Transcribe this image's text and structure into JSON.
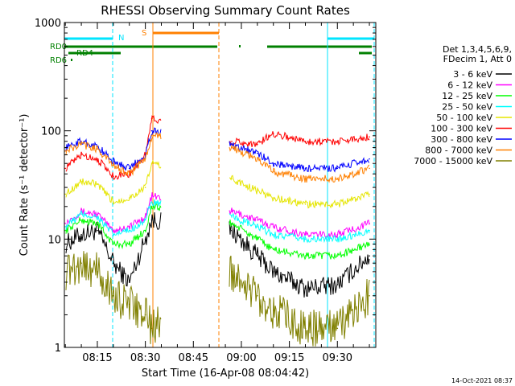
{
  "chart_data": {
    "type": "line",
    "title": "RHESSI Observing Summary Count Rates",
    "xlabel": "Start Time (16-Apr-08 08:04:42)",
    "ylabel": "Count Rate (s⁻¹ detector⁻¹)",
    "y_scale": "log",
    "ylim": [
      1,
      1000
    ],
    "xlim": [
      "08:04:42",
      "09:42:00"
    ],
    "x_ticks": [
      "08:15",
      "08:30",
      "08:45",
      "09:00",
      "09:15",
      "09:30"
    ],
    "y_ticks": [
      "1",
      "10",
      "100",
      "1000"
    ],
    "legend": {
      "placement": "right",
      "header": [
        "Det 1,3,4,5,6,9,",
        "FDecim 1, Att 0"
      ]
    },
    "series": [
      {
        "name": "3 - 6 keV",
        "color": "#000000",
        "x": [
          "08:05",
          "08:10",
          "08:15",
          "08:20",
          "08:25",
          "08:30",
          "08:32",
          "08:57",
          "09:05",
          "09:10",
          "09:20",
          "09:30",
          "09:40"
        ],
        "y": [
          9,
          11,
          12,
          6,
          4,
          10,
          15,
          12,
          7,
          5,
          3.5,
          3.8,
          7
        ]
      },
      {
        "name": "6 - 12 keV",
        "color": "#ff00ff",
        "x": [
          "08:05",
          "08:10",
          "08:15",
          "08:20",
          "08:25",
          "08:30",
          "08:32",
          "08:57",
          "09:05",
          "09:10",
          "09:20",
          "09:30",
          "09:40"
        ],
        "y": [
          14,
          18,
          17,
          12,
          13,
          16,
          25,
          18,
          15,
          13,
          11,
          11,
          14
        ]
      },
      {
        "name": "12 - 25 keV",
        "color": "#00ff00",
        "x": [
          "08:05",
          "08:10",
          "08:15",
          "08:20",
          "08:25",
          "08:30",
          "08:32",
          "08:57",
          "09:05",
          "09:10",
          "09:20",
          "09:30",
          "09:40"
        ],
        "y": [
          12,
          15,
          14,
          9,
          9,
          12,
          20,
          14,
          10,
          8,
          7,
          7,
          9
        ]
      },
      {
        "name": "25 - 50 keV",
        "color": "#00ffff",
        "x": [
          "08:05",
          "08:10",
          "08:15",
          "08:20",
          "08:25",
          "08:30",
          "08:32",
          "08:57",
          "09:05",
          "09:10",
          "09:20",
          "09:30",
          "09:40"
        ],
        "y": [
          13,
          17,
          16,
          11,
          12,
          15,
          22,
          16,
          13,
          11,
          10,
          10,
          12
        ]
      },
      {
        "name": "50 - 100 keV",
        "color": "#e5e500",
        "x": [
          "08:05",
          "08:10",
          "08:15",
          "08:20",
          "08:25",
          "08:30",
          "08:32",
          "08:57",
          "09:05",
          "09:10",
          "09:20",
          "09:30",
          "09:40"
        ],
        "y": [
          26,
          34,
          32,
          22,
          24,
          30,
          50,
          36,
          28,
          24,
          21,
          21,
          26
        ]
      },
      {
        "name": "100 - 300 keV",
        "color": "#ff0000",
        "x": [
          "08:05",
          "08:10",
          "08:15",
          "08:20",
          "08:25",
          "08:30",
          "08:32",
          "08:57",
          "09:05",
          "09:10",
          "09:20",
          "09:30",
          "09:40"
        ],
        "y": [
          45,
          60,
          55,
          38,
          40,
          60,
          130,
          80,
          75,
          95,
          80,
          80,
          88
        ]
      },
      {
        "name": "300 - 800 keV",
        "color": "#0000ff",
        "x": [
          "08:05",
          "08:10",
          "08:15",
          "08:20",
          "08:25",
          "08:30",
          "08:32",
          "08:57",
          "09:05",
          "09:10",
          "09:20",
          "09:30",
          "09:40"
        ],
        "y": [
          70,
          80,
          72,
          52,
          45,
          60,
          100,
          75,
          62,
          50,
          45,
          45,
          55
        ]
      },
      {
        "name": "800 - 7000 keV",
        "color": "#ff8000",
        "x": [
          "08:05",
          "08:10",
          "08:15",
          "08:20",
          "08:25",
          "08:30",
          "08:32",
          "08:57",
          "09:05",
          "09:10",
          "09:20",
          "09:30",
          "09:40"
        ],
        "y": [
          65,
          75,
          68,
          48,
          40,
          55,
          90,
          70,
          55,
          42,
          36,
          36,
          45
        ]
      },
      {
        "name": "7000 - 15000 keV",
        "color": "#808000",
        "x": [
          "08:05",
          "08:10",
          "08:15",
          "08:20",
          "08:25",
          "08:30",
          "08:32",
          "08:57",
          "09:05",
          "09:10",
          "09:20",
          "09:30",
          "09:40"
        ],
        "y": [
          5,
          6,
          5,
          3,
          2.5,
          2,
          1.5,
          5,
          3,
          2.2,
          1.5,
          1.5,
          3
        ]
      }
    ],
    "annotations": {
      "status_labels": [
        {
          "text": "RD0",
          "color": "#008000"
        },
        {
          "text": "RD4",
          "color": "#008000"
        },
        {
          "text": "RD6",
          "color": "#008000"
        },
        {
          "text": "N",
          "color": "#00e5ff"
        },
        {
          "text": "S",
          "color": "#ff8000"
        }
      ],
      "timestamp": "14-Oct-2021 08:37"
    }
  }
}
